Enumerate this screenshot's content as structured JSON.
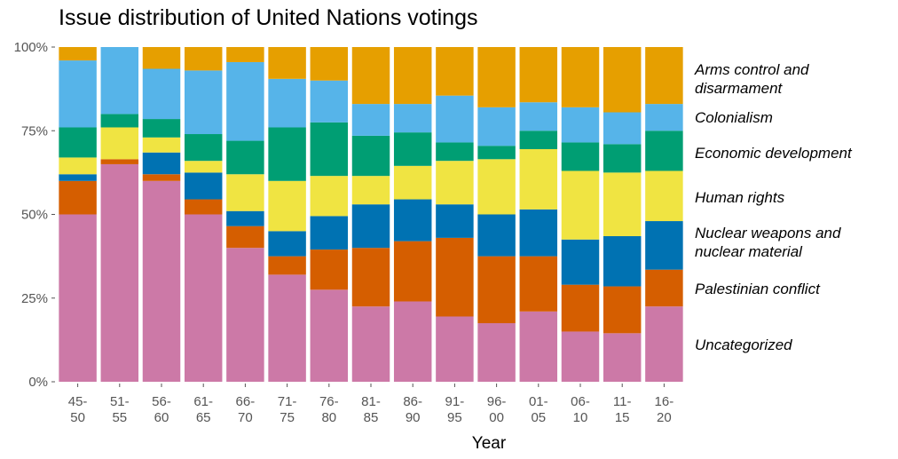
{
  "chart_data": {
    "type": "bar",
    "stacked": true,
    "normalized": true,
    "title": "Issue distribution of United Nations votings",
    "xlabel": "Year",
    "ylabel": "",
    "ylim": [
      0,
      100
    ],
    "y_ticks": [
      "0%",
      "25%",
      "50%",
      "75%",
      "100%"
    ],
    "legend_position": "right",
    "grid": false,
    "categories": [
      [
        "45-",
        "50"
      ],
      [
        "51-",
        "55"
      ],
      [
        "56-",
        "60"
      ],
      [
        "61-",
        "65"
      ],
      [
        "66-",
        "70"
      ],
      [
        "71-",
        "75"
      ],
      [
        "76-",
        "80"
      ],
      [
        "81-",
        "85"
      ],
      [
        "86-",
        "90"
      ],
      [
        "91-",
        "95"
      ],
      [
        "96-",
        "00"
      ],
      [
        "01-",
        "05"
      ],
      [
        "06-",
        "10"
      ],
      [
        "11-",
        "15"
      ],
      [
        "16-",
        "20"
      ]
    ],
    "series": [
      {
        "name": "Uncategorized",
        "color": "#CC79A7",
        "values": [
          50,
          65,
          60,
          50,
          40,
          32,
          27.5,
          22.5,
          24,
          19.5,
          17.5,
          21,
          15,
          14.5,
          22.5
        ]
      },
      {
        "name": "Palestinian conflict",
        "color": "#D55E00",
        "values": [
          10,
          1.5,
          2,
          4.5,
          6.5,
          5.5,
          12,
          17.5,
          18,
          23.5,
          20,
          16.5,
          14,
          14,
          11
        ]
      },
      {
        "name": "Nuclear weapons and\nnuclear material",
        "color": "#0072B2",
        "values": [
          2,
          0,
          6.5,
          8,
          4.5,
          7.5,
          10,
          13,
          12.5,
          10,
          12.5,
          14,
          13.5,
          15,
          14.5
        ]
      },
      {
        "name": "Human rights",
        "color": "#F0E442",
        "values": [
          5,
          9.5,
          4.5,
          3.5,
          11,
          15,
          12,
          8.5,
          10,
          13,
          16.5,
          18,
          20.5,
          19,
          15
        ]
      },
      {
        "name": "Economic development",
        "color": "#009E73",
        "values": [
          9,
          4,
          5.5,
          8,
          10,
          16,
          16,
          12,
          10,
          5.5,
          4,
          5.5,
          8.5,
          8.5,
          12
        ]
      },
      {
        "name": "Colonialism",
        "color": "#56B4E9",
        "values": [
          20,
          20,
          15,
          19,
          23.5,
          14.5,
          12.5,
          9.5,
          8.5,
          14,
          11.5,
          8.5,
          10.5,
          9.5,
          8
        ]
      },
      {
        "name": "Arms control and\ndisarmament",
        "color": "#E69F00",
        "values": [
          4,
          0,
          6.5,
          7,
          4.5,
          9.5,
          10,
          17,
          17,
          14.5,
          18,
          16.5,
          18,
          19.5,
          17
        ]
      }
    ]
  }
}
